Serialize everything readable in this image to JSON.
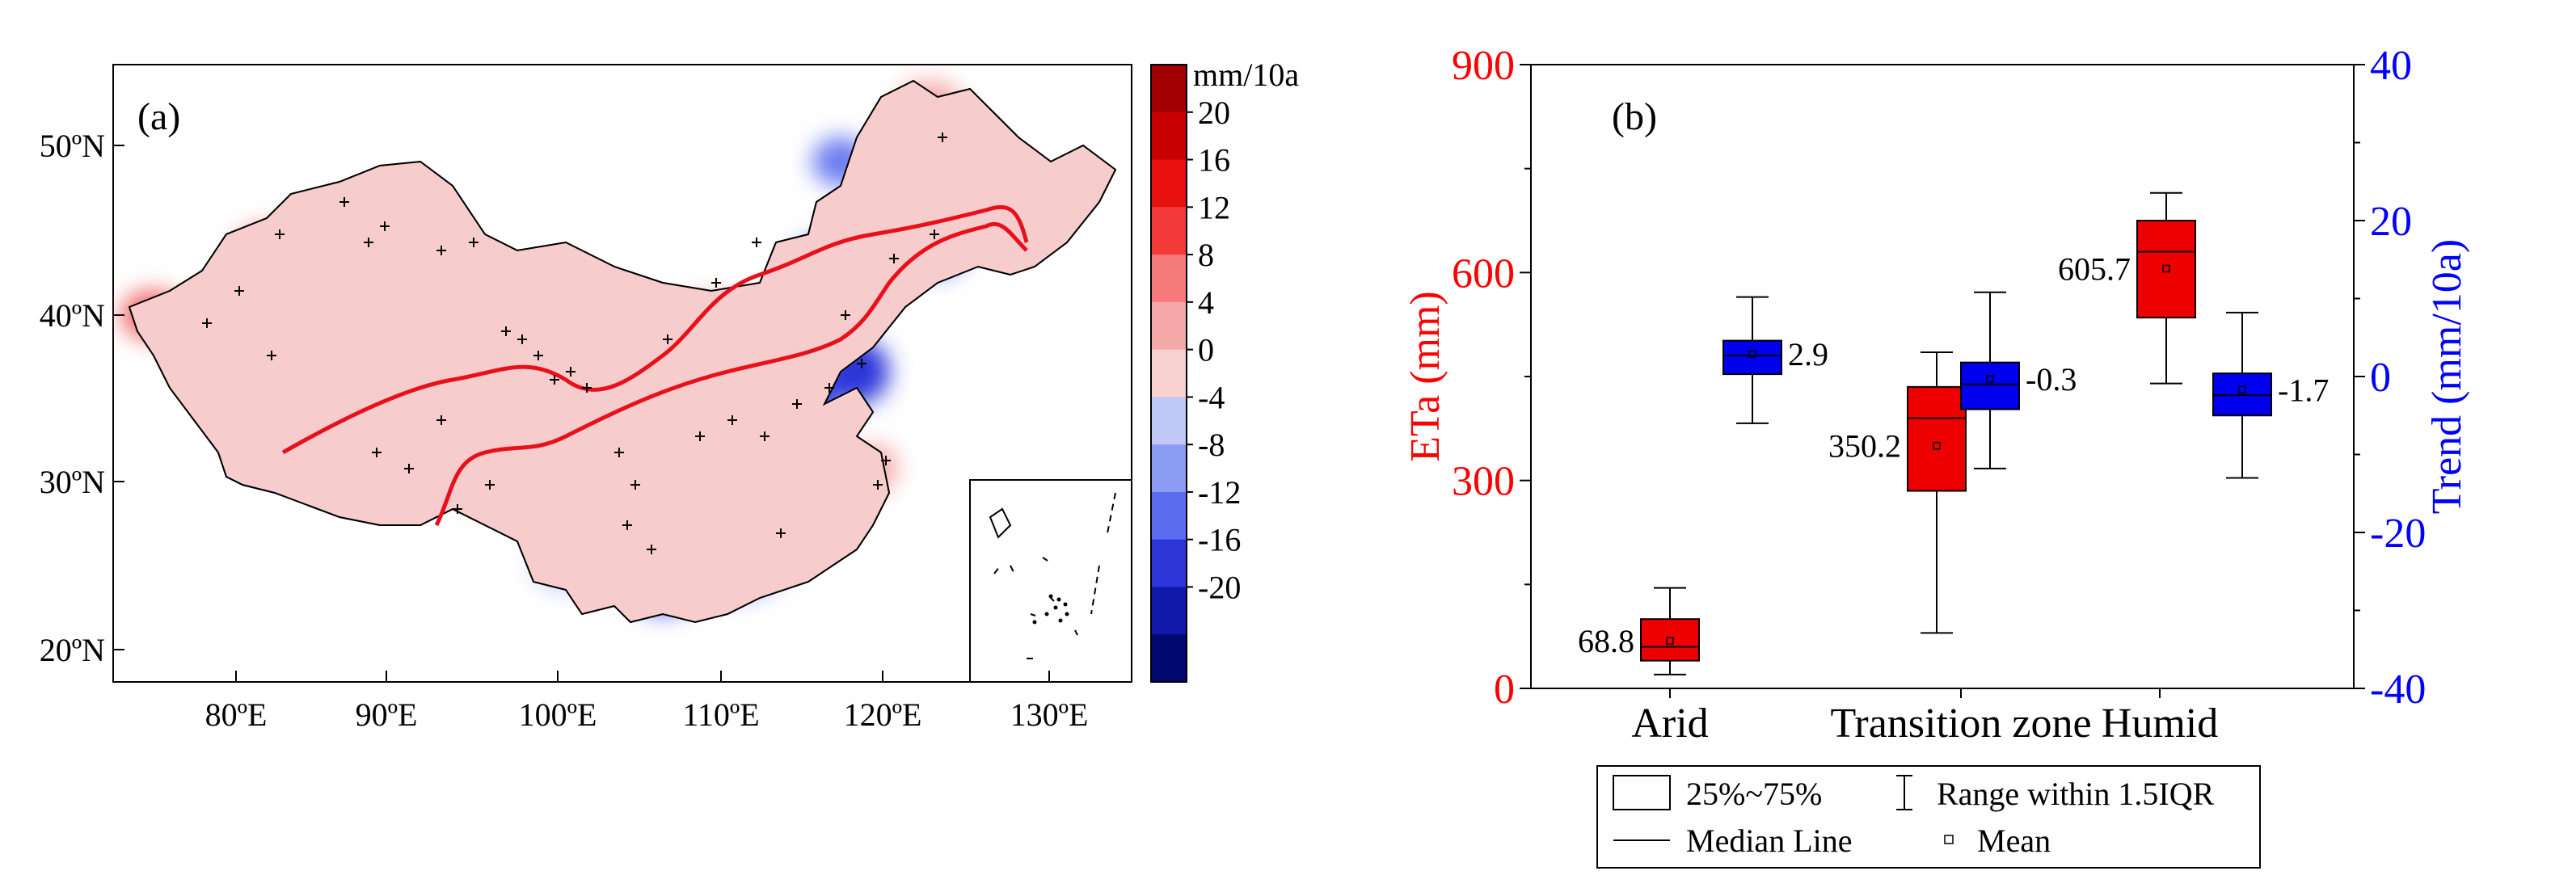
{
  "chart_data": [
    {
      "type": "map",
      "panel_label": "(a)",
      "x_ticks": [
        "80ºE",
        "90ºE",
        "100ºE",
        "110ºE",
        "120ºE",
        "130ºE"
      ],
      "y_ticks": [
        "50ºN",
        "40ºN",
        "30ºN",
        "20ºN"
      ],
      "colorbar_title": "mm/10a",
      "colorbar_labels": [
        "20",
        "16",
        "12",
        "8",
        "4",
        "0",
        "-4",
        "-8",
        "-12",
        "-16",
        "-20"
      ],
      "colorbar_colors": [
        "#a00000",
        "#c80000",
        "#e81010",
        "#f53a3a",
        "#f77a7a",
        "#f5a8a8",
        "#f8d0d0",
        "#c0c8f5",
        "#8c9cf2",
        "#5a6cf0",
        "#2b35d8",
        "#1018a8",
        "#000870"
      ]
    },
    {
      "type": "box",
      "panel_label": "(b)",
      "categories": [
        "Arid",
        "Transition zone",
        "Humid"
      ],
      "left_axis": {
        "label": "ETa (mm)",
        "range": [
          0,
          900
        ],
        "ticks": [
          "0",
          "300",
          "600",
          "900"
        ],
        "color": "#ff0000"
      },
      "right_axis": {
        "label": "Trend (mm/10a)",
        "range": [
          -40,
          40
        ],
        "ticks": [
          "-40",
          "-20",
          "0",
          "20",
          "40"
        ],
        "color": "#0000ff"
      },
      "eta_boxes": [
        {
          "category": "Arid",
          "whisker_low": 20,
          "q1": 40,
          "median": 60,
          "q3": 100,
          "whisker_high": 145,
          "mean": 68.8,
          "label": "68.8"
        },
        {
          "category": "Transition zone",
          "whisker_low": 80,
          "q1": 285,
          "median": 390,
          "q3": 435,
          "whisker_high": 485,
          "mean": 350.2,
          "label": "350.2"
        },
        {
          "category": "Humid",
          "whisker_low": 440,
          "q1": 535,
          "median": 630,
          "q3": 675,
          "whisker_high": 715,
          "mean": 605.7,
          "label": "605.7"
        }
      ],
      "trend_boxes": [
        {
          "category": "Arid",
          "whisker_low": -6,
          "q1": 0.3,
          "median": 2.7,
          "q3": 4.6,
          "whisker_high": 10.2,
          "mean": 2.9,
          "label": "2.9"
        },
        {
          "category": "Transition zone",
          "whisker_low": -11.8,
          "q1": -4.2,
          "median": -1.0,
          "q3": 1.8,
          "whisker_high": 10.8,
          "mean": -0.3,
          "label": "-0.3"
        },
        {
          "category": "Humid",
          "whisker_low": -13,
          "q1": -5,
          "median": -2.4,
          "q3": 0.4,
          "whisker_high": 8.2,
          "mean": -1.7,
          "label": "-1.7"
        }
      ],
      "legend": {
        "box": "25%~75%",
        "range": "Range within 1.5IQR",
        "median": "Median Line",
        "mean": "Mean"
      }
    }
  ]
}
